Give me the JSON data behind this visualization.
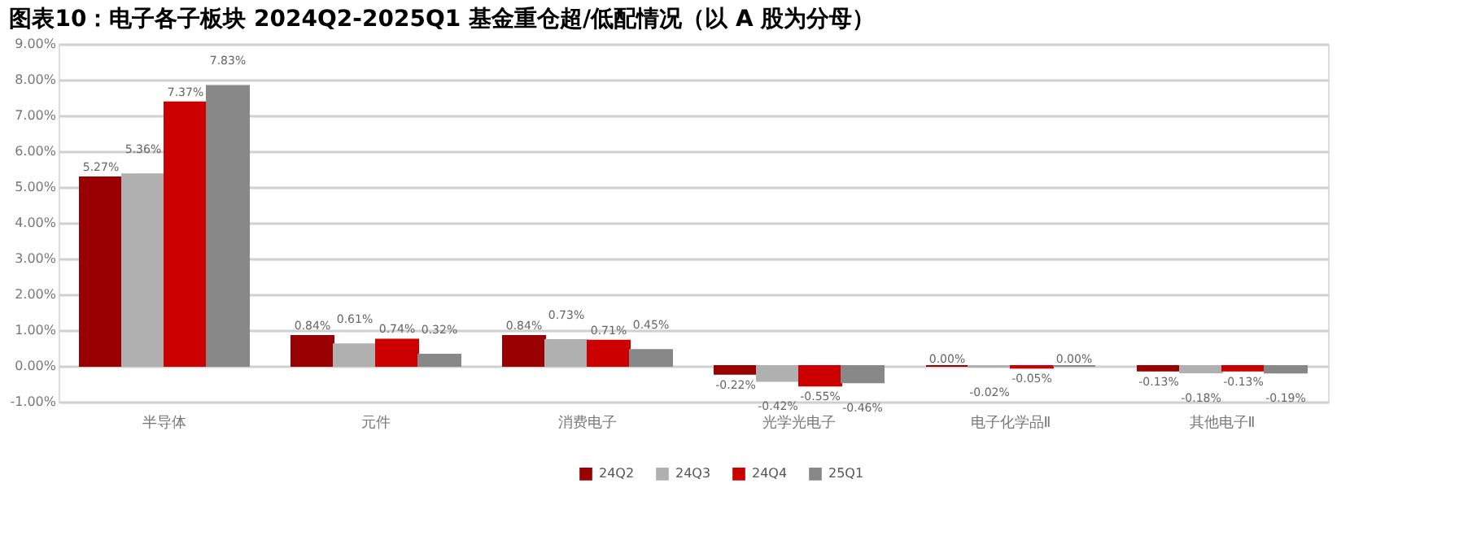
{
  "chart_data": {
    "type": "bar",
    "title": "图表10：电子各子板块 2024Q2-2025Q1 基金重仓超/低配情况（以 A 股为分母）",
    "categories": [
      "半导体",
      "元件",
      "消费电子",
      "光学光电子",
      "电子化学品Ⅱ",
      "其他电子Ⅱ"
    ],
    "series": [
      {
        "name": "24Q2",
        "color": "#990000",
        "values": [
          5.27,
          0.84,
          0.84,
          -0.22,
          0.0,
          -0.13
        ],
        "value_labels": [
          "5.27%",
          "0.84%",
          "0.84%",
          "-0.22%",
          "0.00%",
          "-0.13%"
        ]
      },
      {
        "name": "24Q3",
        "color": "#b0b0b0",
        "values": [
          5.36,
          0.61,
          0.73,
          -0.42,
          -0.02,
          -0.18
        ],
        "value_labels": [
          "5.36%",
          "0.61%",
          "0.73%",
          "-0.42%",
          "-0.02%",
          "-0.18%"
        ]
      },
      {
        "name": "24Q4",
        "color": "#cc0000",
        "values": [
          7.37,
          0.74,
          0.71,
          -0.55,
          -0.05,
          -0.13
        ],
        "value_labels": [
          "7.37%",
          "0.74%",
          "0.71%",
          "-0.55%",
          "-0.05%",
          "-0.13%"
        ]
      },
      {
        "name": "25Q1",
        "color": "#888888",
        "values": [
          7.83,
          0.32,
          0.45,
          -0.46,
          0.0,
          -0.19
        ],
        "value_labels": [
          "7.83%",
          "0.32%",
          "0.45%",
          "-0.46%",
          "0.00%",
          "-0.19%"
        ]
      }
    ],
    "ylim": [
      -1,
      9
    ],
    "yticks": [
      {
        "value": -1,
        "label": "-1.00%"
      },
      {
        "value": 0,
        "label": "0.00%"
      },
      {
        "value": 1,
        "label": "1.00%"
      },
      {
        "value": 2,
        "label": "2.00%"
      },
      {
        "value": 3,
        "label": "3.00%"
      },
      {
        "value": 4,
        "label": "4.00%"
      },
      {
        "value": 5,
        "label": "5.00%"
      },
      {
        "value": 6,
        "label": "6.00%"
      },
      {
        "value": 7,
        "label": "7.00%"
      },
      {
        "value": 8,
        "label": "8.00%"
      },
      {
        "value": 9,
        "label": "9.00%"
      }
    ],
    "grid": "y",
    "legend": "bottom"
  }
}
